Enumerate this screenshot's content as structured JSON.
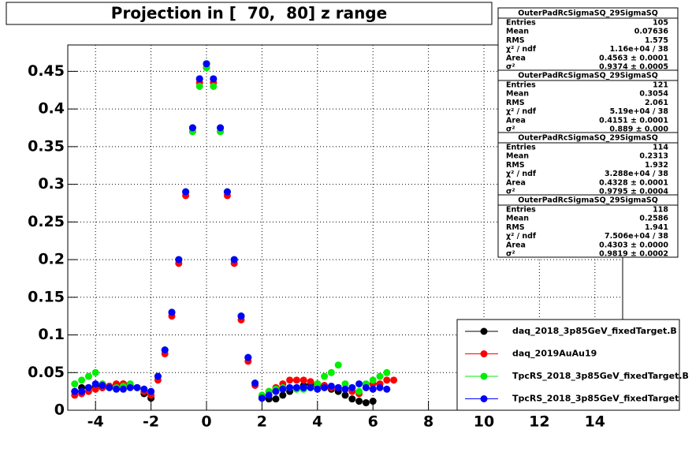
{
  "chart_data": {
    "type": "scatter",
    "title": "Projection in [  70,  80] z range",
    "x": [
      -4.75,
      -4.5,
      -4.25,
      -4,
      -3.75,
      -3.5,
      -3.25,
      -3,
      -2.75,
      -2.5,
      -2.25,
      -2,
      -1.75,
      -1.5,
      -1.25,
      -1,
      -0.75,
      -0.5,
      -0.25,
      0,
      0.25,
      0.5,
      0.75,
      1,
      1.25,
      1.5,
      1.75,
      2,
      2.25,
      2.5,
      2.75,
      3,
      3.25,
      3.5,
      3.75,
      4,
      4.25,
      4.5,
      4.75,
      5,
      5.25,
      5.5,
      5.75,
      6,
      6.25,
      6.5,
      6.75
    ],
    "series": [
      {
        "name": "daq_2018_3p85GeV_fixedTarget.B",
        "color": "#000000",
        "values": [
          0.025,
          0.03,
          0.03,
          0.032,
          0.03,
          0.03,
          0.033,
          0.035,
          0.033,
          0.03,
          0.022,
          0.016,
          0.045,
          0.08,
          0.13,
          0.2,
          0.29,
          0.375,
          0.44,
          0.46,
          0.44,
          0.375,
          0.29,
          0.2,
          0.125,
          0.07,
          0.036,
          0.016,
          0.015,
          0.015,
          0.02,
          0.025,
          0.03,
          0.033,
          0.035,
          0.033,
          0.03,
          0.028,
          0.025,
          0.02,
          0.015,
          0.012,
          0.01,
          0.012,
          null,
          null,
          null
        ]
      },
      {
        "name": "daq_2019AuAu19",
        "color": "#ff0000",
        "values": [
          0.02,
          0.022,
          0.025,
          0.028,
          0.03,
          0.032,
          0.035,
          0.035,
          0.032,
          0.03,
          0.025,
          0.02,
          0.04,
          0.075,
          0.125,
          0.195,
          0.285,
          0.37,
          0.435,
          0.455,
          0.435,
          0.37,
          0.285,
          0.195,
          0.12,
          0.065,
          0.033,
          0.018,
          0.025,
          0.03,
          0.035,
          0.04,
          0.04,
          0.04,
          0.038,
          0.035,
          0.033,
          0.03,
          0.03,
          0.028,
          0.025,
          0.022,
          0.03,
          0.035,
          0.035,
          0.04,
          0.04
        ]
      },
      {
        "name": "TpcRS_2018_3p85GeV_fixedTarget.B",
        "color": "#00ee00",
        "values": [
          0.035,
          0.04,
          0.045,
          0.05,
          0.035,
          0.03,
          0.03,
          0.032,
          0.035,
          0.03,
          0.028,
          0.025,
          0.045,
          0.08,
          0.13,
          0.2,
          0.29,
          0.37,
          0.43,
          0.455,
          0.43,
          0.37,
          0.29,
          0.2,
          0.125,
          0.07,
          0.036,
          0.02,
          0.025,
          0.028,
          0.03,
          0.03,
          0.028,
          0.028,
          0.03,
          0.035,
          0.045,
          0.05,
          0.06,
          0.035,
          0.03,
          0.025,
          0.035,
          0.04,
          0.045,
          0.05,
          null
        ]
      },
      {
        "name": "TpcRS_2018_3p85GeV_fixedTarget",
        "color": "#0000ff",
        "values": [
          0.025,
          0.025,
          0.03,
          0.035,
          0.033,
          0.03,
          0.028,
          0.028,
          0.03,
          0.03,
          0.028,
          0.025,
          0.045,
          0.08,
          0.13,
          0.2,
          0.29,
          0.375,
          0.44,
          0.46,
          0.44,
          0.375,
          0.29,
          0.2,
          0.125,
          0.07,
          0.036,
          0.016,
          0.02,
          0.025,
          0.028,
          0.03,
          0.03,
          0.03,
          0.03,
          0.028,
          0.03,
          0.032,
          0.03,
          0.028,
          0.03,
          0.035,
          0.03,
          0.028,
          0.03,
          0.028,
          null
        ]
      }
    ],
    "xlim": [
      -5,
      15
    ],
    "xticks": [
      -4,
      -2,
      0,
      2,
      4,
      6,
      8,
      10,
      12,
      14
    ],
    "ylim": [
      0,
      0.485
    ],
    "yticks": [
      0,
      0.05,
      0.1,
      0.15,
      0.2,
      0.25,
      0.3,
      0.35,
      0.4,
      0.45
    ],
    "grid": true,
    "legend": "bottom-right",
    "stats": {
      "labels": [
        "Entries",
        "Mean",
        "RMS",
        "χ² / ndf",
        "Area",
        "σ²"
      ],
      "boxes": [
        {
          "title": "OuterPadRcSigmaSQ_29SigmaSQ",
          "values": [
            "105",
            "0.07636",
            "1.575",
            "1.16e+04 / 38",
            "0.4563 ± 0.0001",
            "0.9374 ± 0.0005"
          ]
        },
        {
          "title": "OuterPadRcSigmaSQ_29SigmaSQ",
          "values": [
            "121",
            "0.3054",
            "2.061",
            "5.19e+04 / 38",
            "0.4151 ± 0.0001",
            "0.889 ± 0.000"
          ]
        },
        {
          "title": "OuterPadRcSigmaSQ_29SigmaSQ",
          "values": [
            "114",
            "0.2313",
            "1.932",
            "3.288e+04 / 38",
            "0.4328 ± 0.0001",
            "0.9795 ± 0.0004"
          ]
        },
        {
          "title": "OuterPadRcSigmaSQ_29SigmaSQ",
          "values": [
            "118",
            "0.2586",
            "1.941",
            "7.506e+04 / 38",
            "0.4303 ± 0.0000",
            "0.9819 ± 0.0002"
          ]
        }
      ]
    }
  }
}
